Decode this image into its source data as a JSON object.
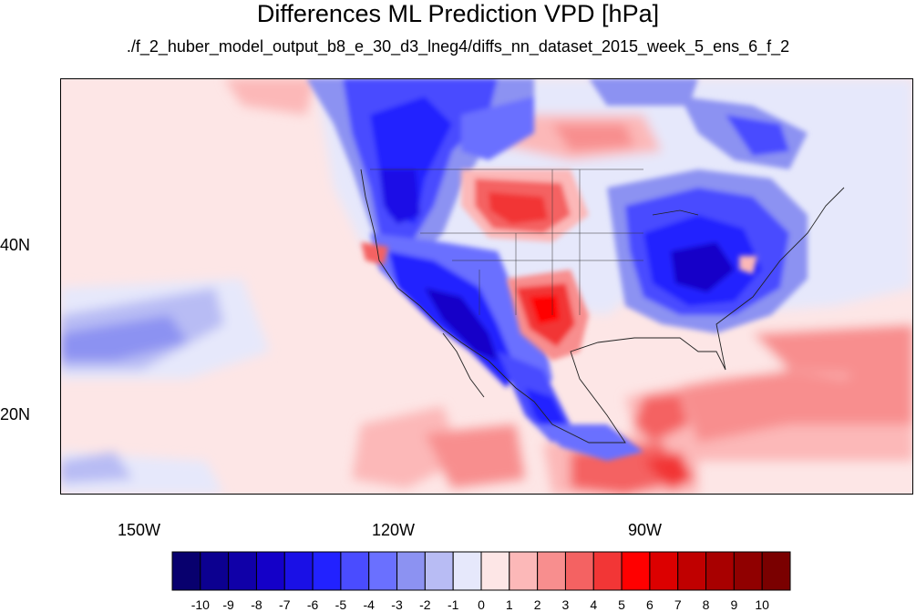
{
  "title": "Differences ML Prediction VPD [hPa]",
  "subtitle": "./f_2_huber_model_output_b8_e_30_d3_lneg4/diffs_nn_dataset_2015_week_5_ens_6_f_2",
  "axes": {
    "lat_labels": [
      "40N",
      "20N"
    ],
    "lon_labels": [
      "150W",
      "120W",
      "90W"
    ]
  },
  "colorbar": {
    "labels": [
      "-10",
      "-9",
      "-8",
      "-7",
      "-6",
      "-5",
      "-4",
      "-3",
      "-2",
      "-1",
      "0",
      "1",
      "2",
      "3",
      "4",
      "5",
      "6",
      "7",
      "8",
      "9",
      "10"
    ],
    "colors": [
      "#08006e",
      "#0c0090",
      "#1000a8",
      "#1400c8",
      "#1a10e6",
      "#2222ff",
      "#4a4cff",
      "#6a70ff",
      "#8c92f2",
      "#b8bcf4",
      "#e6e8fb",
      "#fde6e6",
      "#fcb8b8",
      "#f88e8e",
      "#f46262",
      "#f23636",
      "#ff0000",
      "#dc0000",
      "#c00000",
      "#a80000",
      "#900000",
      "#7a0000"
    ]
  },
  "map": {
    "region": "North America and eastern Pacific",
    "lon_range": [
      -160,
      -60
    ],
    "lat_range": [
      10,
      58
    ]
  }
}
